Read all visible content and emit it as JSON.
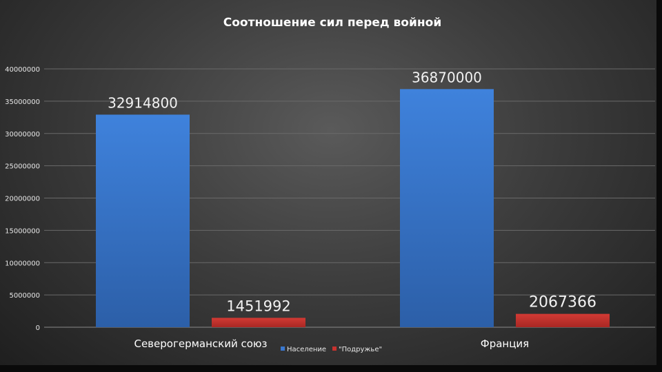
{
  "chart_data": {
    "type": "bar",
    "title": "Соотношение сил перед войной",
    "categories": [
      "Северогерманский союз",
      "Франция"
    ],
    "series": [
      {
        "name": "Население",
        "values": [
          32914800,
          36870000
        ],
        "color": "#3a78cf"
      },
      {
        "name": "\"Подружье\"",
        "values": [
          1451992,
          2067366
        ],
        "color": "#c8322e"
      }
    ],
    "data_labels": [
      [
        "32914800",
        "36870000"
      ],
      [
        "1451992",
        "2067366"
      ]
    ],
    "yticks": [
      "0",
      "5000000",
      "10000000",
      "15000000",
      "20000000",
      "25000000",
      "30000000",
      "35000000",
      "40000000"
    ],
    "ylim": [
      0,
      40000000
    ],
    "grid": true,
    "legend": "bottom"
  }
}
